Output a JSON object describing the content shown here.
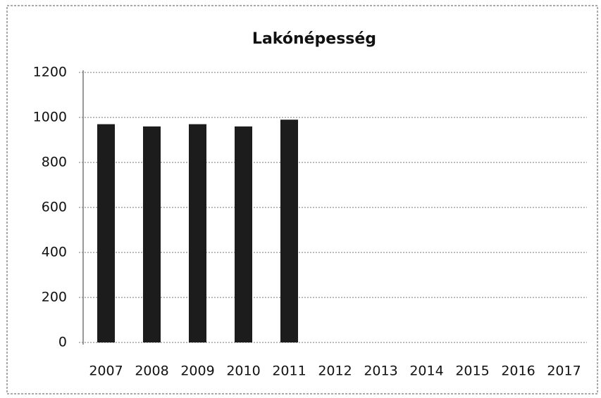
{
  "chart_data": {
    "type": "bar",
    "title": "Lakónépesség",
    "categories": [
      "2007",
      "2008",
      "2009",
      "2010",
      "2011",
      "2012",
      "2013",
      "2014",
      "2015",
      "2016",
      "2017"
    ],
    "values": [
      970,
      960,
      970,
      960,
      990,
      null,
      null,
      null,
      null,
      null,
      null
    ],
    "color": "#1c1c1c",
    "ylim": [
      0,
      1200
    ],
    "yticks": [
      0,
      200,
      400,
      600,
      800,
      1000,
      1200
    ],
    "grid": true
  }
}
